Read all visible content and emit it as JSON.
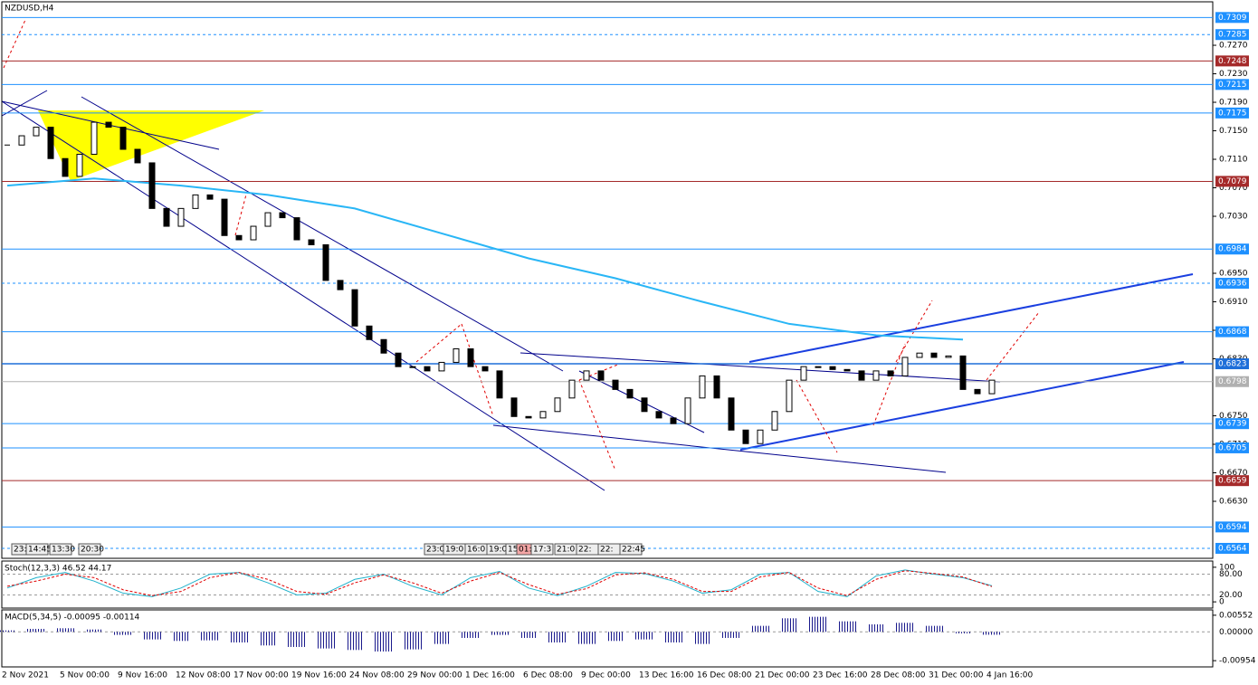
{
  "symbol": "NZDUSD,H4",
  "chart_data": {
    "type": "candlestick",
    "closes": [
      0.713,
      0.7143,
      0.7155,
      0.7111,
      0.7086,
      0.7117,
      0.7162,
      0.7155,
      0.7124,
      0.7105,
      0.7041,
      0.7016,
      0.7041,
      0.706,
      0.7054,
      0.7003,
      0.6997,
      0.7016,
      0.7035,
      0.7028,
      0.6997,
      0.699,
      0.694,
      0.6927,
      0.6876,
      0.6857,
      0.6838,
      0.6819,
      0.6819,
      0.6813,
      0.6825,
      0.6844,
      0.6819,
      0.6813,
      0.6775,
      0.6749,
      0.6747,
      0.6756,
      0.6775,
      0.68,
      0.6813,
      0.68,
      0.6787,
      0.6775,
      0.6756,
      0.6747,
      0.6739,
      0.6775,
      0.6806,
      0.6775,
      0.673,
      0.6711,
      0.673,
      0.6756,
      0.68,
      0.6819,
      0.6819,
      0.6815,
      0.6813,
      0.68,
      0.6813,
      0.6806,
      0.6832,
      0.6838,
      0.6832,
      0.6834,
      0.6787,
      0.6781,
      0.68
    ],
    "ma_slow": {
      "color": "#29b6f6",
      "x": [
        0,
        6,
        12,
        18,
        24,
        30,
        36,
        42,
        48,
        54,
        60,
        66
      ],
      "values": [
        0.7073,
        0.7083,
        0.7073,
        0.706,
        0.7041,
        0.7006,
        0.6971,
        0.6943,
        0.691,
        0.6879,
        0.6863,
        0.6857
      ]
    },
    "ylim": [
      0.655,
      0.7331
    ],
    "yticks": [
      {
        "value": 0.727,
        "label": "0.7270"
      },
      {
        "value": 0.723,
        "label": "0.7230"
      },
      {
        "value": 0.719,
        "label": "0.7190"
      },
      {
        "value": 0.715,
        "label": "0.7150"
      },
      {
        "value": 0.711,
        "label": "0.7110"
      },
      {
        "value": 0.707,
        "label": "0.7070"
      },
      {
        "value": 0.703,
        "label": "0.7030"
      },
      {
        "value": 0.695,
        "label": "0.6950"
      },
      {
        "value": 0.691,
        "label": "0.6910"
      },
      {
        "value": 0.687,
        "label": "0.6870"
      },
      {
        "value": 0.683,
        "label": "0.6830"
      },
      {
        "value": 0.675,
        "label": "0.6750"
      },
      {
        "value": 0.671,
        "label": "0.6710"
      },
      {
        "value": 0.667,
        "label": "0.6670"
      },
      {
        "value": 0.663,
        "label": "0.6630"
      }
    ],
    "levels": [
      {
        "value": 0.7309,
        "label": "0.7309",
        "color": "#1e90ff",
        "dashed": false
      },
      {
        "value": 0.7285,
        "label": "0.7285",
        "color": "#1e90ff",
        "dashed": true
      },
      {
        "value": 0.7248,
        "label": "0.7248",
        "color": "#a52a2a",
        "dashed": false
      },
      {
        "value": 0.7215,
        "label": "0.7215",
        "color": "#1e90ff",
        "dashed": false
      },
      {
        "value": 0.7175,
        "label": "0.7175",
        "color": "#1e90ff",
        "dashed": false
      },
      {
        "value": 0.7079,
        "label": "0.7079",
        "color": "#a52a2a",
        "dashed": false
      },
      {
        "value": 0.6984,
        "label": "0.6984",
        "color": "#1e90ff",
        "dashed": false
      },
      {
        "value": 0.6936,
        "label": "0.6936",
        "color": "#1e90ff",
        "dashed": true
      },
      {
        "value": 0.6868,
        "label": "0.6868",
        "color": "#1e90ff",
        "dashed": false
      },
      {
        "value": 0.6823,
        "label": "0.6823",
        "color": "#1e6fd9",
        "dashed": false
      },
      {
        "value": 0.6798,
        "label": "0.6798",
        "color": "#b0b0b0",
        "dashed": false
      },
      {
        "value": 0.6739,
        "label": "0.6739",
        "color": "#1e90ff",
        "dashed": false
      },
      {
        "value": 0.6705,
        "label": "0.6705",
        "color": "#1e90ff",
        "dashed": false
      },
      {
        "value": 0.6659,
        "label": "0.6659",
        "color": "#a52a2a",
        "dashed": false
      },
      {
        "value": 0.6594,
        "label": "0.6594",
        "color": "#1e90ff",
        "dashed": false
      },
      {
        "value": 0.6564,
        "label": "0.6564",
        "color": "#1e90ff",
        "dashed": true
      }
    ],
    "x_labels": [
      "2 Nov 2021",
      "5 Nov 00:00",
      "9 Nov 16:00",
      "12 Nov 08:00",
      "17 Nov 00:00",
      "19 Nov 16:00",
      "24 Nov 08:00",
      "29 Nov 00:00",
      "1 Dec 16:00",
      "6 Dec 08:00",
      "9 Dec 00:00",
      "13 Dec 16:00",
      "16 Dec 08:00",
      "21 Dec 00:00",
      "23 Dec 16:00",
      "28 Dec 08:00",
      "31 Dec 00:00",
      "4 Jan 16:00"
    ],
    "time_tags": [
      "23:",
      "14:45",
      "13:30",
      "20:30",
      "23:0",
      "19:0",
      "16:0",
      "19:0",
      "15",
      "01:",
      "17:3",
      "21:0",
      "22:",
      "22:",
      "22:45"
    ]
  },
  "stoch": {
    "title": "Stoch(12,3,3) 46.52 44.17",
    "ylim": [
      -18,
      118
    ],
    "yticks": [
      100,
      {
        "value": 80,
        "label": "80.00"
      },
      {
        "value": 20,
        "label": "20.00"
      },
      0
    ],
    "x": [
      0,
      2,
      4,
      6,
      8,
      10,
      12,
      14,
      16,
      18,
      20,
      22,
      24,
      26,
      28,
      30,
      32,
      34,
      36,
      38,
      40,
      42,
      44,
      46,
      48,
      50,
      52,
      54,
      56,
      58,
      60,
      62,
      64,
      66,
      68
    ],
    "main": [
      40,
      70,
      85,
      60,
      25,
      15,
      40,
      80,
      85,
      55,
      20,
      25,
      65,
      80,
      45,
      20,
      70,
      88,
      40,
      18,
      45,
      85,
      82,
      60,
      25,
      35,
      80,
      85,
      30,
      15,
      75,
      92,
      80,
      70,
      46.52
    ],
    "signal": [
      45,
      60,
      80,
      70,
      35,
      18,
      30,
      70,
      85,
      65,
      30,
      22,
      55,
      78,
      55,
      25,
      60,
      85,
      50,
      22,
      38,
      78,
      84,
      65,
      30,
      30,
      72,
      85,
      40,
      18,
      65,
      90,
      82,
      72,
      44.17
    ]
  },
  "macd": {
    "title": "MACD(5,34,5) -0.00095 -0.00114",
    "ylim": [
      -0.01161,
      0.00729
    ],
    "yticks": [
      {
        "value": 0.00552,
        "label": "0.00552"
      },
      {
        "value": 0,
        "label": "0.00000"
      },
      {
        "value": -0.00954,
        "label": "-0.00954"
      }
    ],
    "x": [
      0,
      2,
      4,
      6,
      8,
      10,
      12,
      14,
      16,
      18,
      20,
      22,
      24,
      26,
      28,
      30,
      32,
      34,
      36,
      38,
      40,
      42,
      44,
      46,
      48,
      50,
      52,
      54,
      56,
      58,
      60,
      62,
      64,
      66,
      68
    ],
    "values": [
      0.0005,
      0.001,
      0.0012,
      0.0008,
      -0.001,
      -0.0025,
      -0.003,
      -0.0028,
      -0.0035,
      -0.0045,
      -0.005,
      -0.0055,
      -0.006,
      -0.0065,
      -0.0058,
      -0.004,
      -0.002,
      -0.001,
      -0.002,
      -0.0035,
      -0.004,
      -0.003,
      -0.0025,
      -0.0035,
      -0.004,
      -0.002,
      0.002,
      0.0045,
      0.005,
      0.0035,
      0.0025,
      0.003,
      0.002,
      -0.0005,
      -0.00095
    ]
  }
}
